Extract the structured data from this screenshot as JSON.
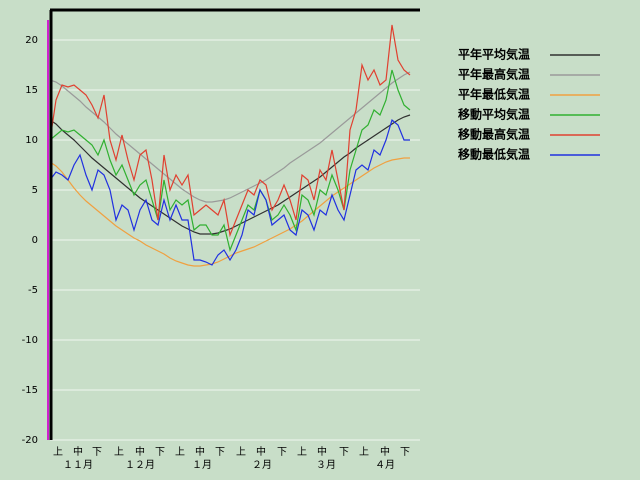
{
  "chart_data": {
    "type": "line",
    "x": [
      0,
      3,
      6,
      9,
      12,
      15,
      18,
      21,
      24,
      27,
      30,
      33,
      36,
      39,
      42,
      45,
      48,
      51,
      54,
      57,
      60,
      63,
      66,
      69,
      72,
      75,
      78,
      81,
      84,
      87,
      90,
      93,
      96,
      99,
      102,
      105,
      108,
      111,
      114,
      117,
      120,
      123,
      126,
      129,
      132,
      135,
      138,
      141,
      144,
      147,
      150,
      153,
      156,
      159,
      162,
      165,
      168,
      171,
      174,
      177,
      180
    ],
    "xlim": [
      0,
      185
    ],
    "xticks": [
      {
        "value": 4,
        "label": "上"
      },
      {
        "value": 14,
        "label": "中"
      },
      {
        "value": 23.5,
        "label": "下"
      },
      {
        "value": 34.5,
        "label": "上"
      },
      {
        "value": 45,
        "label": "中"
      },
      {
        "value": 55,
        "label": "下"
      },
      {
        "value": 65,
        "label": "上"
      },
      {
        "value": 75,
        "label": "中"
      },
      {
        "value": 85,
        "label": "下"
      },
      {
        "value": 95.5,
        "label": "上"
      },
      {
        "value": 105.5,
        "label": "中"
      },
      {
        "value": 116,
        "label": "下"
      },
      {
        "value": 126,
        "label": "上"
      },
      {
        "value": 136,
        "label": "中"
      },
      {
        "value": 147,
        "label": "下"
      },
      {
        "value": 157,
        "label": "上"
      },
      {
        "value": 167.5,
        "label": "中"
      },
      {
        "value": 177.5,
        "label": "下"
      }
    ],
    "x_month_labels": [
      {
        "value": 14,
        "label": "１１月"
      },
      {
        "value": 45,
        "label": "１２月"
      },
      {
        "value": 76,
        "label": "１月"
      },
      {
        "value": 106,
        "label": "２月"
      },
      {
        "value": 138,
        "label": "３月"
      },
      {
        "value": 167.5,
        "label": "４月"
      }
    ],
    "ylim": [
      -20,
      23
    ],
    "yticks": [
      -20,
      -15,
      -10,
      -5,
      0,
      5,
      10,
      15,
      20
    ],
    "grid": true,
    "series": [
      {
        "name": "平年平均気温",
        "color": "#303030",
        "values": [
          12,
          11.6,
          11,
          10.5,
          10,
          9.4,
          8.8,
          8.2,
          7.7,
          7.2,
          6.7,
          6.2,
          5.7,
          5.2,
          4.7,
          4.2,
          3.8,
          3.4,
          3.0,
          2.6,
          2.2,
          1.8,
          1.4,
          1.1,
          0.8,
          0.6,
          0.6,
          0.6,
          0.7,
          0.9,
          1.1,
          1.4,
          1.7,
          2.0,
          2.3,
          2.6,
          2.9,
          3.2,
          3.5,
          3.9,
          4.3,
          4.7,
          5.1,
          5.5,
          5.9,
          6.3,
          6.8,
          7.3,
          7.8,
          8.3,
          8.7,
          9.2,
          9.6,
          10.0,
          10.4,
          10.8,
          11.2,
          11.6,
          12.0,
          12.3,
          12.5
        ]
      },
      {
        "name": "平年最高気温",
        "color": "#9a9a9a",
        "values": [
          16,
          15.8,
          15.4,
          14.9,
          14.4,
          13.9,
          13.3,
          12.8,
          12.3,
          11.8,
          11.2,
          10.6,
          10.1,
          9.6,
          9.1,
          8.6,
          8.1,
          7.6,
          7.1,
          6.6,
          6.1,
          5.6,
          5.1,
          4.7,
          4.3,
          4.0,
          3.8,
          3.8,
          3.9,
          4.0,
          4.2,
          4.5,
          4.8,
          5.1,
          5.4,
          5.7,
          6.0,
          6.4,
          6.8,
          7.2,
          7.7,
          8.1,
          8.5,
          8.9,
          9.3,
          9.7,
          10.2,
          10.7,
          11.2,
          11.7,
          12.2,
          12.7,
          13.2,
          13.7,
          14.2,
          14.7,
          15.2,
          15.7,
          16.1,
          16.5,
          16.8
        ]
      },
      {
        "name": "平年最低気温",
        "color": "#f0a040",
        "values": [
          7.8,
          7.4,
          6.8,
          6.0,
          5.2,
          4.5,
          3.9,
          3.4,
          2.9,
          2.4,
          1.9,
          1.4,
          1.0,
          0.6,
          0.2,
          -0.1,
          -0.5,
          -0.8,
          -1.1,
          -1.4,
          -1.8,
          -2.1,
          -2.3,
          -2.5,
          -2.6,
          -2.6,
          -2.5,
          -2.4,
          -2.2,
          -1.9,
          -1.6,
          -1.3,
          -1.1,
          -0.9,
          -0.7,
          -0.4,
          -0.1,
          0.2,
          0.5,
          0.8,
          1.1,
          1.5,
          1.9,
          2.4,
          2.9,
          3.4,
          3.9,
          4.4,
          4.8,
          5.2,
          5.6,
          6.0,
          6.4,
          6.8,
          7.2,
          7.5,
          7.8,
          8.0,
          8.1,
          8.2,
          8.2
        ]
      },
      {
        "name": "移動平均気温",
        "color": "#30b030",
        "values": [
          10,
          10.5,
          11,
          10.8,
          11,
          10.5,
          10,
          9.5,
          8.5,
          10,
          8,
          6.5,
          7.5,
          6,
          4.5,
          5.5,
          6,
          4,
          2,
          6,
          3,
          4,
          3.5,
          4,
          1,
          1.5,
          1.5,
          0.5,
          0.5,
          1.5,
          -1,
          0.5,
          2,
          3.5,
          3,
          5,
          4,
          2,
          2.5,
          3.5,
          2.5,
          1,
          4.5,
          4,
          2.5,
          5,
          4.5,
          6.5,
          5,
          3,
          7,
          9,
          11,
          11.5,
          13,
          12.5,
          14,
          17,
          15,
          13.5,
          13
        ]
      },
      {
        "name": "移動最高気温",
        "color": "#e04030",
        "values": [
          10,
          14,
          15.5,
          15.3,
          15.5,
          15,
          14.5,
          13.5,
          12.2,
          14.5,
          10,
          8,
          10.5,
          8,
          6,
          8.5,
          9,
          6,
          2,
          8.5,
          5,
          6.5,
          5.5,
          6.5,
          2.5,
          3,
          3.5,
          3,
          2.5,
          4,
          0.5,
          2,
          3.5,
          5,
          4.5,
          6,
          5.5,
          3,
          4,
          5.5,
          4,
          2,
          6.5,
          6,
          4,
          7,
          6,
          9,
          6,
          3,
          11,
          13,
          17.5,
          16,
          17,
          15.5,
          16,
          21.5,
          18,
          17,
          16.5
        ]
      },
      {
        "name": "移動最低気温",
        "color": "#2030e0",
        "values": [
          6,
          6.8,
          6.5,
          6,
          7.5,
          8.5,
          6.5,
          5,
          7,
          6.5,
          5,
          2,
          3.5,
          3,
          1,
          3,
          4,
          2,
          1.5,
          4,
          2,
          3.5,
          2,
          2,
          -2,
          -2,
          -2.2,
          -2.5,
          -1.5,
          -1,
          -2,
          -1,
          0.5,
          3,
          2.5,
          5,
          4,
          1.5,
          2,
          2.5,
          1,
          0.5,
          3,
          2.5,
          1,
          3,
          2.5,
          4.5,
          3,
          2,
          4.5,
          7,
          7.5,
          7,
          9,
          8.5,
          10,
          12,
          11.5,
          10,
          10
        ]
      }
    ]
  }
}
